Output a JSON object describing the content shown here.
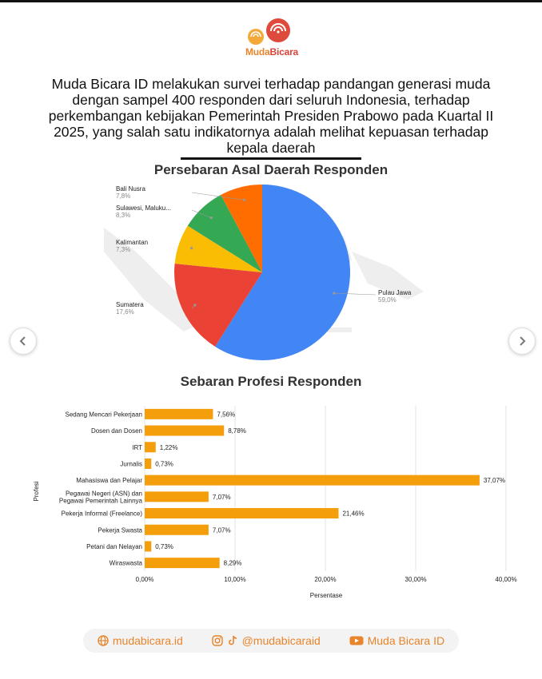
{
  "brand": {
    "name_part1": "Muda",
    "name_part2": "Bicara"
  },
  "intro": "Muda Bicara ID melakukan survei terhadap pandangan generasi muda dengan sampel 400 responden dari seluruh Indonesia, terhadap perkembangan kebijakan Pemerintah Presiden Prabowo pada Kuartal II 2025, yang salah satu indikatornya adalah melihat kepuasan terhadap kepala daerah",
  "colors": {
    "accent": "#f59e0b",
    "blue": "#4285f4",
    "red": "#ea4335",
    "yellow": "#fbbc04",
    "green": "#34a853",
    "orange": "#ff6d01"
  },
  "chart_data": [
    {
      "type": "pie",
      "title": "Persebaran Asal Daerah Responden",
      "labels": [
        "Pulau Jawa",
        "Sumatera",
        "Kalimantan",
        "Sulawesi, Maluku...",
        "Bali Nusra"
      ],
      "display_values": [
        "59,0%",
        "17,6%",
        "7,3%",
        "8,3%",
        "7,8%"
      ],
      "values": [
        59.0,
        17.6,
        7.3,
        8.3,
        7.8
      ],
      "colors": [
        "#4285f4",
        "#ea4335",
        "#fbbc04",
        "#34a853",
        "#ff6d01"
      ]
    },
    {
      "type": "bar",
      "orientation": "horizontal",
      "title": "Sebaran Profesi Responden",
      "ylabel": "Profesi",
      "xlabel": "Persentase",
      "categories": [
        "Sedang Mencari Pekerjaan",
        "Dosen dan Dosen",
        "IRT",
        "Jurnalis",
        "Mahasiswa dan Pelajar",
        "Pegawai Negeri (ASN) dan Pegawai Pemerintah Lainnya",
        "Pekerja Informal (Freelance)",
        "Pekerja Swasta",
        "Petani dan Nelayan",
        "Wiraswasta"
      ],
      "category_lines": [
        [
          "Sedang Mencari Pekerjaan"
        ],
        [
          "Dosen dan Dosen"
        ],
        [
          "IRT"
        ],
        [
          "Jurnalis"
        ],
        [
          "Mahasiswa dan Pelajar"
        ],
        [
          "Pegawai Negeri (ASN) dan",
          "Pegawai Pemerintah Lainnya"
        ],
        [
          "Pekerja Informal (Freelance)"
        ],
        [
          "Pekerja Swasta"
        ],
        [
          "Petani dan Nelayan"
        ],
        [
          "Wiraswasta"
        ]
      ],
      "values": [
        7.56,
        8.78,
        1.22,
        0.73,
        37.07,
        7.07,
        21.46,
        7.07,
        0.73,
        8.29
      ],
      "value_labels": [
        "7,56%",
        "8,78%",
        "1,22%",
        "0,73%",
        "37,07%",
        "7,07%",
        "21,46%",
        "7,07%",
        "0,73%",
        "8,29%"
      ],
      "xlim": [
        0,
        40
      ],
      "xticks": [
        0,
        10,
        20,
        30,
        40
      ],
      "xtick_labels": [
        "0,00%",
        "10,00%",
        "20,00%",
        "30,00%",
        "40,00%"
      ],
      "grid": true,
      "color": "#f59e0b"
    }
  ],
  "footer": {
    "website": "mudabicara.id",
    "social": "@mudabicaraid",
    "youtube": "Muda Bicara ID"
  },
  "icons": {
    "prev": "chevron-left-icon",
    "next": "chevron-right-icon",
    "web": "globe-icon",
    "ig": "instagram-icon",
    "tiktok": "tiktok-icon",
    "yt": "youtube-icon"
  }
}
